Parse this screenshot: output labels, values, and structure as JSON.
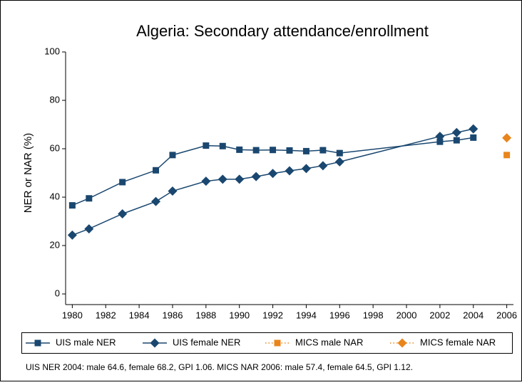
{
  "chart_data": {
    "type": "line",
    "title": "Algeria: Secondary attendance/enrollment",
    "y_label": "NER or NAR (%)",
    "note": "UIS NER 2004: male 64.6, female 68.2, GPI 1.06. MICS NAR 2006: male 57.4, female 64.5, GPI 1.12.",
    "xlim": [
      1979.6,
      2006.4
    ],
    "ylim": [
      -4.4,
      100
    ],
    "xticks": [
      1980,
      1982,
      1984,
      1986,
      1988,
      1990,
      1992,
      1994,
      1996,
      1998,
      2000,
      2002,
      2004,
      2006
    ],
    "yticks": [
      0,
      20,
      40,
      60,
      80,
      100
    ],
    "series": [
      {
        "name": "UIS male NER",
        "color": "#1a476f",
        "marker": "square",
        "line": true,
        "x": [
          1980,
          1981,
          1983,
          1985,
          1986,
          1988,
          1989,
          1990,
          1991,
          1992,
          1993,
          1994,
          1995,
          1996,
          2002,
          2003,
          2004
        ],
        "values": [
          36.6,
          39.5,
          46.2,
          51.1,
          57.4,
          61.3,
          61.1,
          59.6,
          59.4,
          59.5,
          59.3,
          59.0,
          59.4,
          58.2,
          62.9,
          63.5,
          64.6
        ]
      },
      {
        "name": "UIS female NER",
        "color": "#1a476f",
        "marker": "diamond",
        "line": true,
        "x": [
          1980,
          1981,
          1983,
          1985,
          1986,
          1988,
          1989,
          1990,
          1991,
          1992,
          1993,
          1994,
          1995,
          1996,
          2002,
          2003,
          2004
        ],
        "values": [
          24.3,
          26.9,
          33.1,
          38.2,
          42.5,
          46.6,
          47.4,
          47.4,
          48.5,
          49.8,
          50.9,
          51.8,
          53.0,
          54.6,
          65.1,
          66.7,
          68.2
        ]
      },
      {
        "name": "MICS male NAR",
        "color": "#e8851c",
        "marker": "square",
        "line": false,
        "x": [
          2006
        ],
        "values": [
          57.4
        ]
      },
      {
        "name": "MICS female NAR",
        "color": "#e8851c",
        "marker": "diamond",
        "line": false,
        "x": [
          2006
        ],
        "values": [
          64.5
        ]
      }
    ]
  }
}
